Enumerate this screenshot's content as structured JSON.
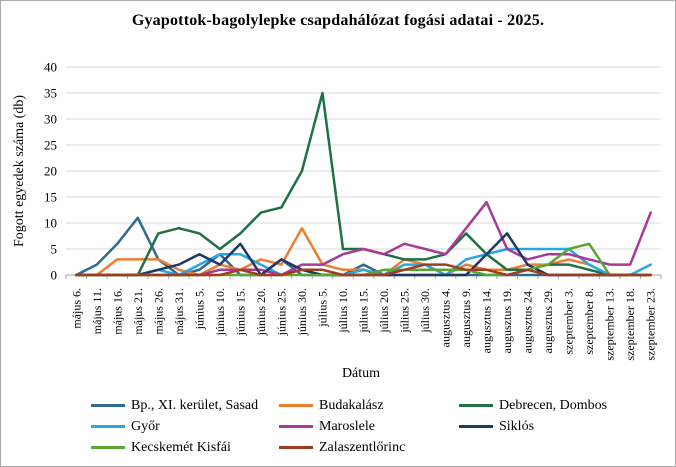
{
  "title": "Gyapottok-bagolylepke csapdahálózat fogási adatai - 2025.",
  "chart_data": {
    "type": "line",
    "title": "Gyapottok-bagolylepke csapdahálózat fogási adatai - 2025.",
    "xlabel": "Dátum",
    "ylabel": "Fogott egyedek száma (db)",
    "ylim": [
      0,
      40
    ],
    "ytick_step": 5,
    "grid": true,
    "legend_position": "bottom",
    "categories": [
      "május 6.",
      "május 11.",
      "május 16.",
      "május 21.",
      "május 26.",
      "május 31.",
      "június 5.",
      "június 10.",
      "június 15.",
      "június 20.",
      "június 25.",
      "június 30.",
      "július 5.",
      "július 10.",
      "július 15.",
      "július 20.",
      "július 25.",
      "július 30.",
      "augusztus 4.",
      "augusztus 9.",
      "augusztus 14.",
      "augusztus 19.",
      "augusztus 24.",
      "augusztus 29.",
      "szeptember 3.",
      "szeptember 8.",
      "szeptember 13.",
      "szeptember 18.",
      "szeptember 23."
    ],
    "series": [
      {
        "name": "Bp., XI. kerület, Sasad",
        "color": "#31698F",
        "values": [
          0,
          2,
          6,
          11,
          3,
          0,
          1,
          4,
          0,
          0,
          3,
          0,
          0,
          0,
          2,
          0,
          0,
          0,
          0,
          0,
          0,
          0,
          0,
          0,
          0,
          0,
          0,
          0,
          0
        ]
      },
      {
        "name": "Budakalász",
        "color": "#ED7D31",
        "values": [
          0,
          0,
          3,
          3,
          3,
          1,
          0,
          2,
          1,
          3,
          2,
          9,
          2,
          1,
          1,
          0,
          3,
          2,
          0,
          2,
          1,
          1,
          2,
          2,
          3,
          2,
          0,
          0,
          0
        ]
      },
      {
        "name": "Debrecen, Dombos",
        "color": "#1F7145",
        "values": [
          0,
          0,
          0,
          0,
          8,
          9,
          8,
          5,
          8,
          12,
          13,
          20,
          35,
          5,
          5,
          4,
          3,
          3,
          4,
          8,
          4,
          1,
          1,
          2,
          2,
          1,
          0,
          0,
          0
        ]
      },
      {
        "name": "Győr",
        "color": "#29A7DF",
        "values": [
          0,
          0,
          0,
          0,
          1,
          0,
          2,
          4,
          4,
          2,
          0,
          1,
          0,
          0,
          1,
          0,
          2,
          2,
          0,
          3,
          4,
          5,
          5,
          5,
          5,
          2,
          0,
          0,
          2
        ]
      },
      {
        "name": "Maroslele",
        "color": "#AA3999",
        "values": [
          0,
          0,
          0,
          0,
          0,
          0,
          0,
          1,
          1,
          1,
          0,
          2,
          2,
          4,
          5,
          4,
          6,
          5,
          4,
          9,
          14,
          5,
          3,
          4,
          4,
          3,
          2,
          2,
          12
        ]
      },
      {
        "name": "Siklós",
        "color": "#1F3864",
        "values": [
          0,
          0,
          0,
          0,
          1,
          2,
          4,
          2,
          6,
          0,
          3,
          1,
          0,
          0,
          0,
          0,
          0,
          0,
          0,
          0,
          4,
          8,
          2,
          0,
          0,
          0,
          0,
          0,
          0
        ]
      },
      {
        "name": "Kecskemét Kisfái",
        "color": "#5AA632",
        "values": [
          0,
          0,
          0,
          0,
          0,
          0,
          0,
          0,
          0,
          0,
          0,
          0,
          0,
          0,
          0,
          1,
          1,
          1,
          1,
          1,
          0,
          0,
          1,
          2,
          5,
          6,
          0,
          0,
          0
        ]
      },
      {
        "name": "Zalaszentlőrinc",
        "color": "#9E3D22",
        "values": [
          0,
          0,
          0,
          0,
          0,
          0,
          0,
          0,
          1,
          0,
          0,
          1,
          1,
          0,
          0,
          0,
          1,
          2,
          2,
          1,
          1,
          0,
          1,
          0,
          0,
          0,
          0,
          0,
          0
        ]
      }
    ]
  }
}
